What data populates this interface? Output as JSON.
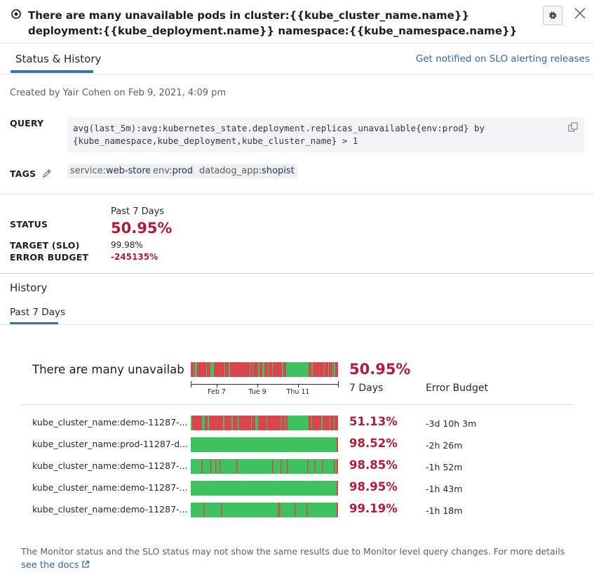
{
  "header": {
    "title": "There are many unavailable pods in cluster:{{kube_cluster_name.name}} deployment:{{kube_deployment.name}} namespace:{{kube_namespace.name}}",
    "icons": {
      "monitor": "monitor-icon",
      "settings": "gear-icon",
      "close": "close-icon"
    }
  },
  "tabs": {
    "active": "Status & History",
    "notify_link": "Get notified on SLO alerting releases"
  },
  "meta": {
    "created": "Created by Yair Cohen on Feb 9, 2021, 4:09 pm"
  },
  "query": {
    "label": "QUERY",
    "text": "avg(last_5m):avg:kubernetes_state.deployment.replicas_unavailable{env:prod} by {kube_namespace,kube_deployment,kube_cluster_name} > 1"
  },
  "tags": {
    "label": "TAGS",
    "items": [
      {
        "key": "service:",
        "value": "web-store"
      },
      {
        "key": "env:",
        "value": "prod"
      },
      {
        "key": "datadog_app:",
        "value": "shopist"
      }
    ]
  },
  "status": {
    "label": "STATUS",
    "period": "Past 7 Days",
    "value": "50.95%",
    "target_label": "TARGET (SLO)",
    "target_value": "99.98%",
    "budget_label": "ERROR BUDGET",
    "budget_value": "-245135%"
  },
  "history": {
    "title": "History",
    "subtab": "Past 7 Days",
    "overall": {
      "name": "There are many unavailab",
      "pct": "50.95%"
    },
    "columns": {
      "days": "7 Days",
      "budget": "Error Budget"
    },
    "axis_ticks": [
      "Feb 7",
      "Tue 9",
      "Thu 11"
    ],
    "groups": [
      {
        "name": "kube_cluster_name:demo-11287-...",
        "pct": "51.13%",
        "budget": "-3d 10h 3m"
      },
      {
        "name": "kube_cluster_name:prod-11287-d...",
        "pct": "98.52%",
        "budget": "-2h 26m"
      },
      {
        "name": "kube_cluster_name:demo-11287-...",
        "pct": "98.85%",
        "budget": "-1h 52m"
      },
      {
        "name": "kube_cluster_name:demo-11287-...",
        "pct": "98.95%",
        "budget": "-1h 43m"
      },
      {
        "name": "kube_cluster_name:demo-11287-...",
        "pct": "99.19%",
        "budget": "-1h 18m"
      }
    ]
  },
  "footer": {
    "note": "The Monitor status and the SLO status may not show the same results due to Monitor level query changes. For more details",
    "docs_link": "see the docs"
  },
  "colors": {
    "ok": "#3dc25f",
    "breach": "#d8454d",
    "accent": "#3d71a9",
    "error_text": "#b21c3a",
    "link": "#2f6aa8"
  }
}
